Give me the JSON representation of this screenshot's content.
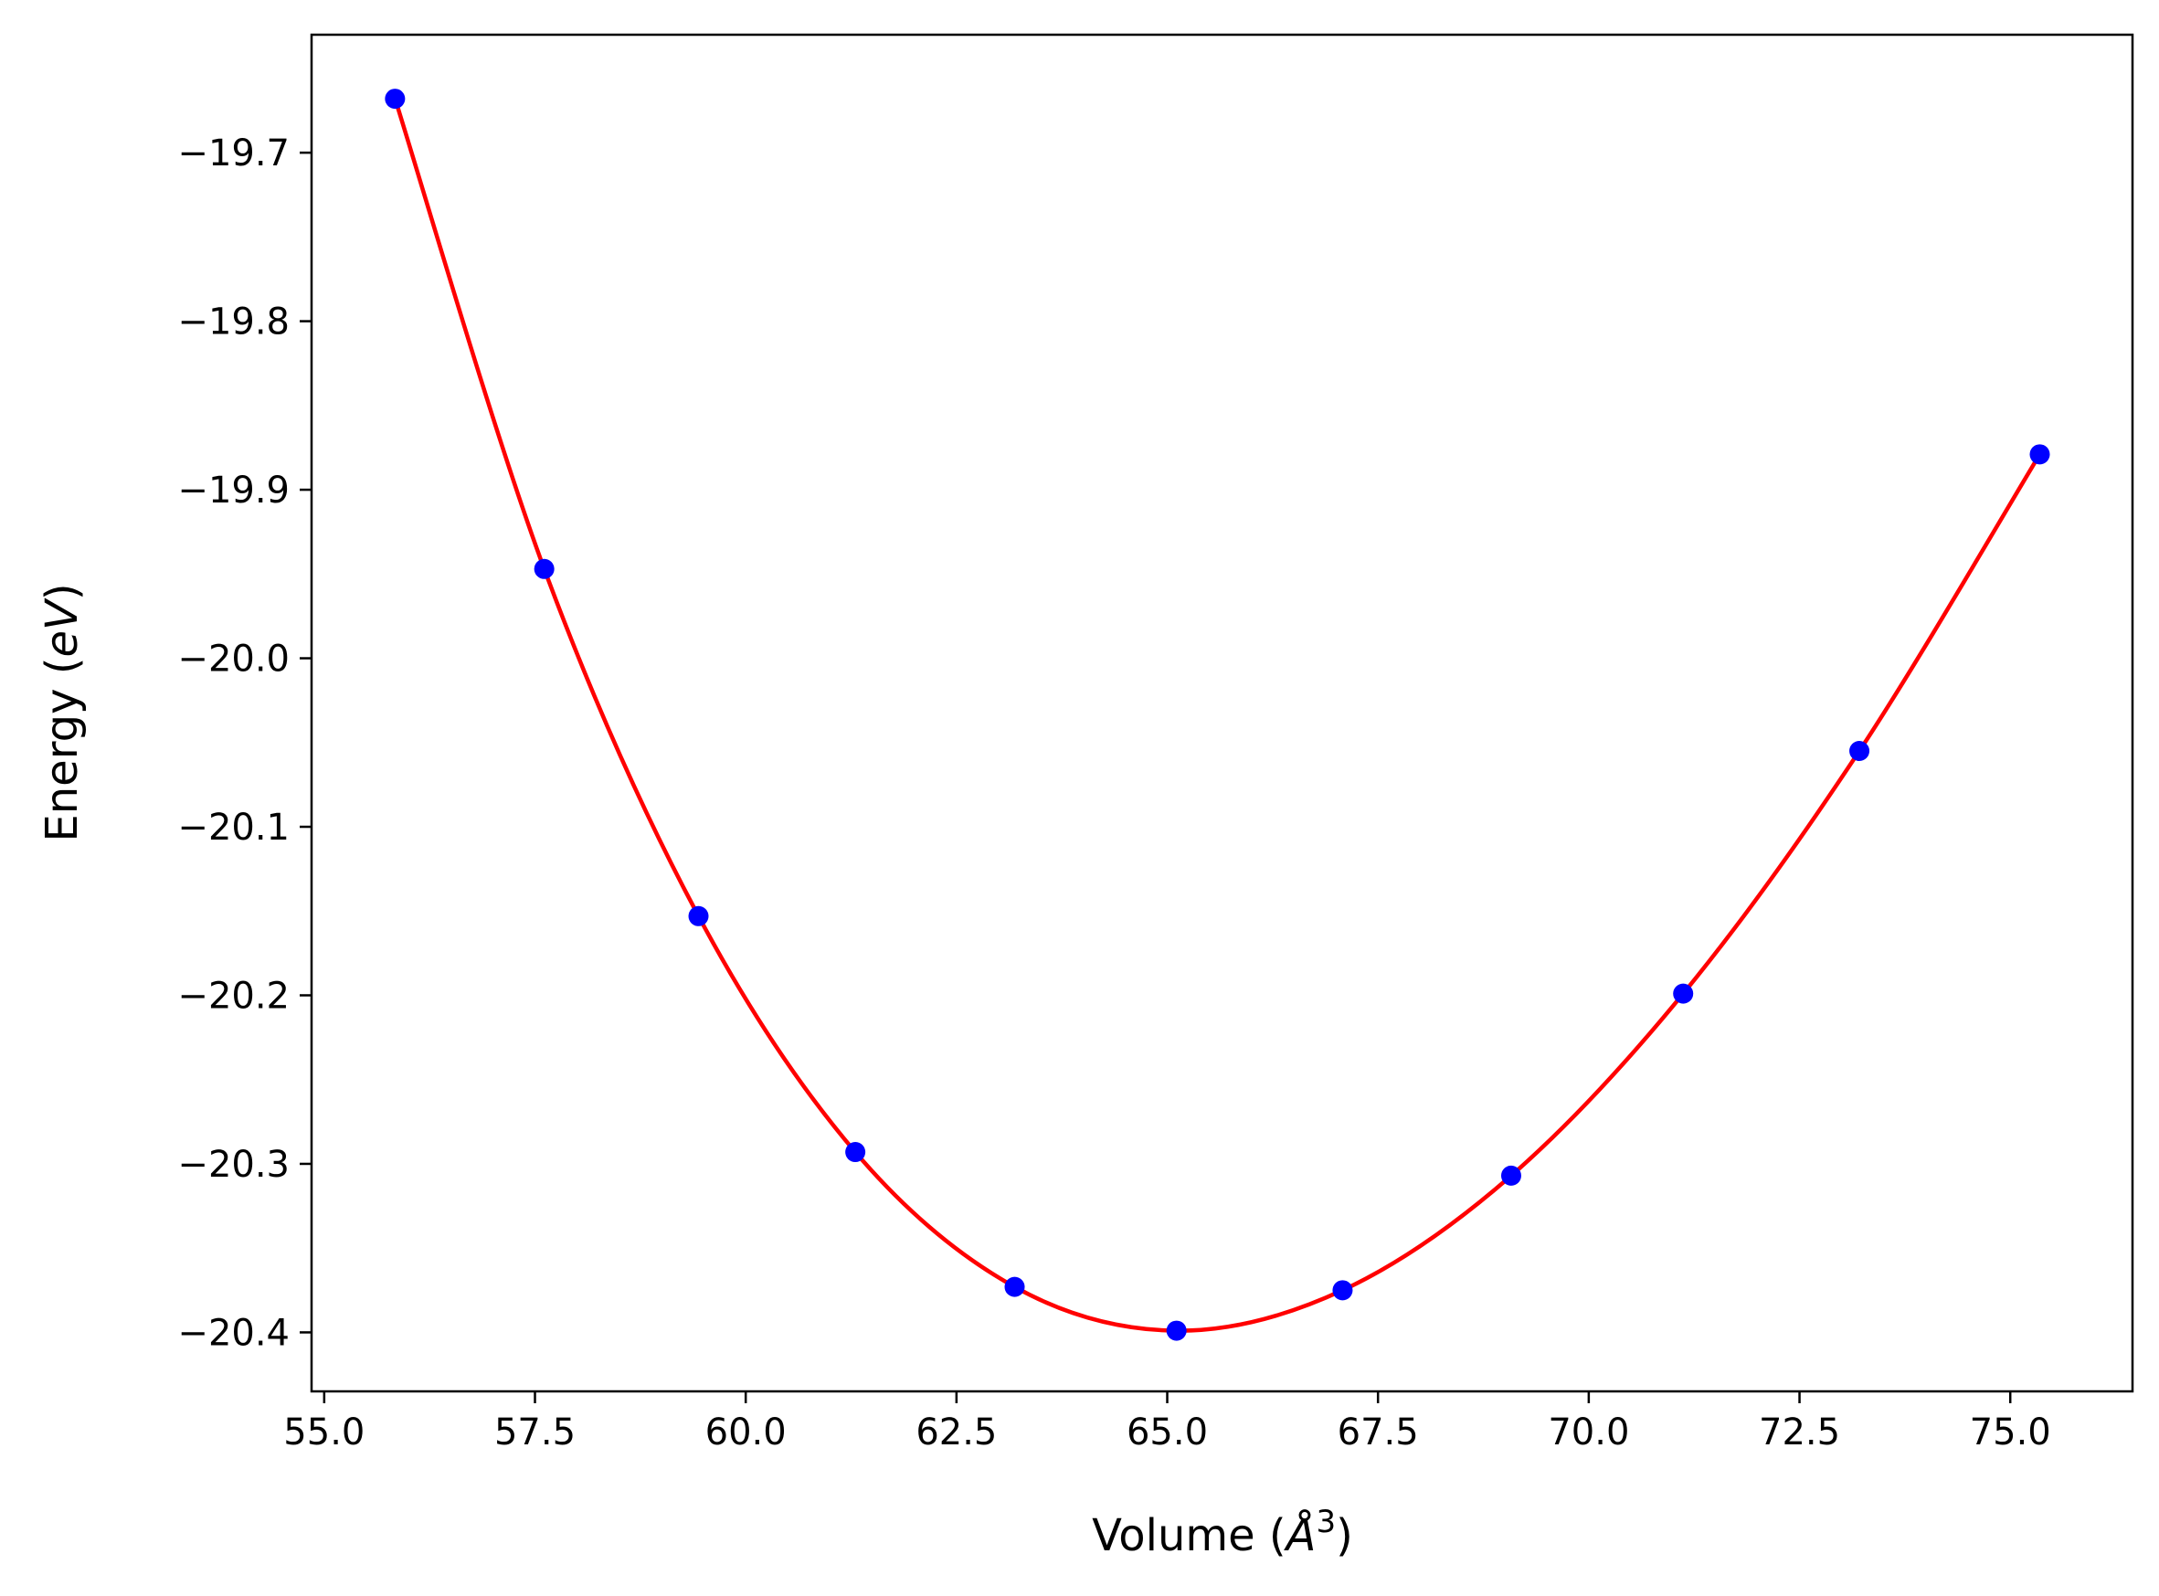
{
  "chart_data": {
    "type": "scatter",
    "title": "",
    "xlabel": "Volume",
    "xlabel_unit": "Å",
    "xlabel_unit_power": "3",
    "ylabel": "Energy",
    "ylabel_unit": "eV",
    "xlim": [
      54.85,
      76.45
    ],
    "ylim": [
      -20.435,
      -19.63
    ],
    "x_ticks": [
      55.0,
      57.5,
      60.0,
      62.5,
      65.0,
      67.5,
      70.0,
      72.5,
      75.0
    ],
    "x_tick_labels": [
      "55.0",
      "57.5",
      "60.0",
      "62.5",
      "65.0",
      "67.5",
      "70.0",
      "72.5",
      "75.0"
    ],
    "y_ticks": [
      -19.7,
      -19.8,
      -19.9,
      -20.0,
      -20.1,
      -20.2,
      -20.3,
      -20.4
    ],
    "y_tick_labels": [
      "−19.7",
      "−19.8",
      "−19.9",
      "−20.0",
      "−20.1",
      "−20.2",
      "−20.3",
      "−20.4"
    ],
    "grid": false,
    "legend": "none",
    "series": [
      {
        "kind": "points",
        "color": "#0000ff",
        "x": [
          55.84,
          57.61,
          59.44,
          61.3,
          63.19,
          65.11,
          67.08,
          69.08,
          71.12,
          73.21,
          75.35
        ],
        "y": [
          -19.668,
          -19.947,
          -20.153,
          -20.293,
          -20.373,
          -20.399,
          -20.375,
          -20.307,
          -20.199,
          -20.055,
          -19.879
        ]
      },
      {
        "kind": "fit-line",
        "color": "#ff0000",
        "x": [
          55.84,
          57.61,
          59.44,
          61.3,
          63.19,
          65.11,
          67.08,
          69.08,
          71.12,
          73.21,
          75.35
        ],
        "y": [
          -19.668,
          -19.947,
          -20.153,
          -20.293,
          -20.373,
          -20.399,
          -20.375,
          -20.307,
          -20.199,
          -20.055,
          -19.879
        ]
      }
    ]
  }
}
